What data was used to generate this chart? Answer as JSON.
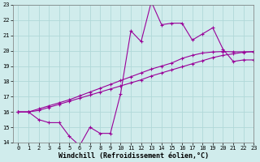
{
  "x_values": [
    0,
    1,
    2,
    3,
    4,
    5,
    6,
    7,
    8,
    9,
    10,
    11,
    12,
    13,
    14,
    15,
    16,
    17,
    18,
    19,
    20,
    21,
    22,
    23
  ],
  "line1": [
    16,
    16,
    15.5,
    15.3,
    15.3,
    14.4,
    13.8,
    15.0,
    14.6,
    14.6,
    17.2,
    21.3,
    20.6,
    23.2,
    21.7,
    21.8,
    21.8,
    20.7,
    21.1,
    21.5,
    20.1,
    19.3,
    19.4,
    19.4
  ],
  "line2": [
    16,
    16,
    16.1,
    16.3,
    16.5,
    16.7,
    16.9,
    17.1,
    17.3,
    17.5,
    17.7,
    17.9,
    18.1,
    18.35,
    18.55,
    18.75,
    18.95,
    19.15,
    19.35,
    19.55,
    19.7,
    19.8,
    19.9,
    19.95
  ],
  "line3": [
    16,
    16,
    16.2,
    16.4,
    16.6,
    16.8,
    17.05,
    17.3,
    17.55,
    17.8,
    18.05,
    18.3,
    18.55,
    18.8,
    19.0,
    19.2,
    19.5,
    19.7,
    19.85,
    19.92,
    19.95,
    19.93,
    19.93,
    19.93
  ],
  "line_color": "#990099",
  "bg_color": "#d0ecec",
  "grid_color": "#b0d8d8",
  "ylim": [
    14,
    23
  ],
  "xlim": [
    -0.5,
    23
  ],
  "yticks": [
    14,
    15,
    16,
    17,
    18,
    19,
    20,
    21,
    22,
    23
  ],
  "xticks": [
    0,
    1,
    2,
    3,
    4,
    5,
    6,
    7,
    8,
    9,
    10,
    11,
    12,
    13,
    14,
    15,
    16,
    17,
    18,
    19,
    20,
    21,
    22,
    23
  ],
  "xlabel": "Windchill (Refroidissement éolien,°C)",
  "marker": "+",
  "markersize": 3,
  "linewidth": 0.8,
  "xlabel_fontsize": 6,
  "tick_fontsize": 5
}
